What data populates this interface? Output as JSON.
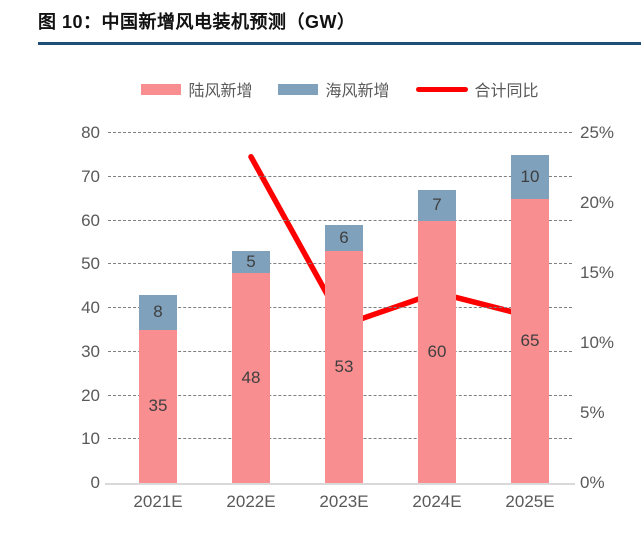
{
  "header": {
    "title": "图 10：中国新增风电装机预测（GW）"
  },
  "colors": {
    "title_rule": "#1f4e79",
    "grid": "#7f7f7f",
    "axis_line": "#d9d9d9",
    "axis_text": "#595959",
    "bar_label": "#3f3f3f"
  },
  "chart_data": {
    "type": "bar",
    "subtype": "stacked-bars-with-line",
    "title": "图 10：中国新增风电装机预测（GW）",
    "categories": [
      "2021E",
      "2022E",
      "2023E",
      "2024E",
      "2025E"
    ],
    "series": [
      {
        "name": "陆风新增",
        "type": "bar",
        "stack": true,
        "color": "#f98e90",
        "values": [
          35,
          48,
          53,
          60,
          65
        ]
      },
      {
        "name": "海风新增",
        "type": "bar",
        "stack": true,
        "color": "#7fa1bc",
        "values": [
          8,
          5,
          6,
          7,
          10
        ]
      },
      {
        "name": "合计同比",
        "type": "line",
        "axis": "right",
        "color": "#ff0000",
        "unit": "%",
        "values": [
          null,
          23.3,
          11.3,
          13.6,
          11.9
        ]
      }
    ],
    "stack_totals": [
      43,
      53,
      59,
      67,
      75
    ],
    "left_axis": {
      "min": 0,
      "max": 80,
      "tick_values": [
        0,
        10,
        20,
        30,
        40,
        50,
        60,
        70,
        80
      ]
    },
    "right_axis": {
      "min": 0,
      "max": 25,
      "tick_labels": [
        "0%",
        "5%",
        "10%",
        "15%",
        "20%",
        "25%"
      ],
      "tick_values": [
        0,
        5,
        10,
        15,
        20,
        25
      ]
    },
    "grid": "horizontal-dashed",
    "legend_position": "top-center",
    "bar_labels_visible": true,
    "line_labels_visible": false
  }
}
